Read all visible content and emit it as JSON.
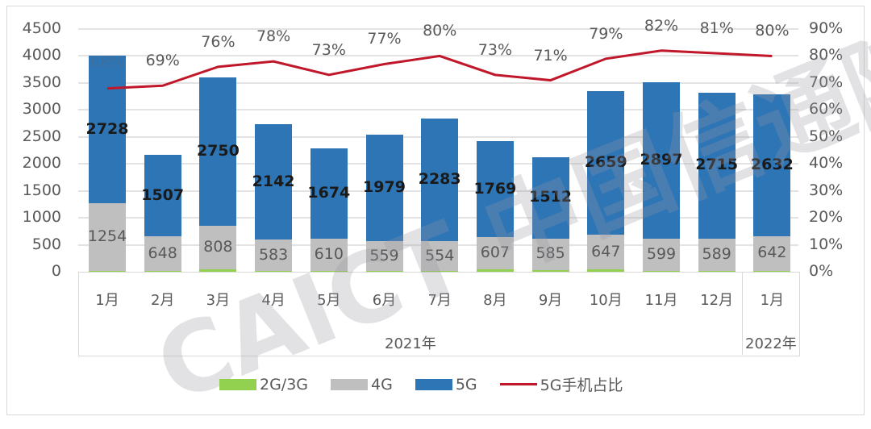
{
  "chart_data": {
    "type": "bar",
    "subtype": "stacked bar with line on secondary axis",
    "title": "",
    "categories": [
      "1月",
      "2月",
      "3月",
      "4月",
      "5月",
      "6月",
      "7月",
      "8月",
      "9月",
      "10月",
      "11月",
      "12月",
      "1月"
    ],
    "category_groups": [
      {
        "label": "2021年",
        "span": 12
      },
      {
        "label": "2022年",
        "span": 1
      }
    ],
    "series": [
      {
        "name": "2G/3G",
        "type": "bar",
        "axis": "left",
        "color": "#92d050",
        "values": [
          20,
          10,
          40,
          10,
          10,
          10,
          10,
          40,
          30,
          40,
          20,
          20,
          20
        ]
      },
      {
        "name": "4G",
        "type": "bar",
        "axis": "left",
        "color": "#bfbfbf",
        "values": [
          1254,
          648,
          808,
          583,
          610,
          559,
          554,
          607,
          585,
          647,
          599,
          589,
          642
        ]
      },
      {
        "name": "5G",
        "type": "bar",
        "axis": "left",
        "color": "#2e75b6",
        "values": [
          2728,
          1507,
          2750,
          2142,
          1674,
          1979,
          2283,
          1769,
          1512,
          2659,
          2897,
          2715,
          2632
        ]
      },
      {
        "name": "5G手机占比",
        "type": "line",
        "axis": "right",
        "color": "#c0182a",
        "values": [
          68,
          69,
          76,
          78,
          73,
          77,
          80,
          73,
          71,
          79,
          82,
          81,
          80
        ],
        "unit": "%"
      }
    ],
    "y_left": {
      "min": 0,
      "max": 4500,
      "step": 500,
      "ticks": [
        "0",
        "500",
        "1000",
        "1500",
        "2000",
        "2500",
        "3000",
        "3500",
        "4000",
        "4500"
      ]
    },
    "y_right": {
      "min": 0,
      "max": 90,
      "step": 10,
      "ticks": [
        "0%",
        "10%",
        "20%",
        "30%",
        "40%",
        "50%",
        "60%",
        "70%",
        "80%",
        "90%"
      ]
    },
    "xlabel": "",
    "ylabel": "",
    "grid": true,
    "legend_position": "bottom",
    "data_labels": {
      "4G": [
        "1254",
        "648",
        "808",
        "583",
        "610",
        "559",
        "554",
        "607",
        "585",
        "647",
        "599",
        "589",
        "642"
      ],
      "5G": [
        "2728",
        "1507",
        "2750",
        "2142",
        "1674",
        "1979",
        "2283",
        "1769",
        "1512",
        "2659",
        "2897",
        "2715",
        "2632"
      ],
      "5G手机占比": [
        "68%",
        "69%",
        "76%",
        "78%",
        "73%",
        "77%",
        "80%",
        "73%",
        "71%",
        "79%",
        "82%",
        "81%",
        "80%"
      ]
    },
    "watermark": "CAICT 中国信通院"
  },
  "legend": {
    "items": [
      {
        "label": "2G/3G",
        "color": "#92d050",
        "kind": "box"
      },
      {
        "label": "4G",
        "color": "#bfbfbf",
        "kind": "box"
      },
      {
        "label": "5G",
        "color": "#2e75b6",
        "kind": "box"
      },
      {
        "label": "5G手机占比",
        "color": "#c0182a",
        "kind": "line"
      }
    ]
  },
  "years": {
    "y2021": "2021年",
    "y2022": "2022年"
  }
}
